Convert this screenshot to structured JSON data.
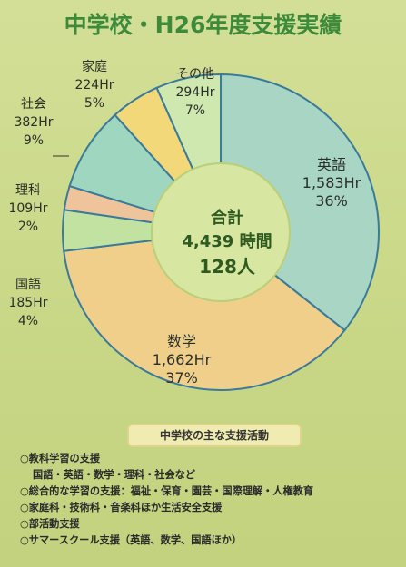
{
  "chart_data": {
    "type": "pie",
    "title": "中学校・H26年度支援実績",
    "center": {
      "line1": "合計",
      "line2": "4,439 時間",
      "line3": "128人"
    },
    "slices": [
      {
        "name": "英語",
        "value_label": "1,583Hr",
        "percent_label": "36%",
        "value": 1583,
        "color": "#a9d6c4"
      },
      {
        "name": "数学",
        "value_label": "1,662Hr",
        "percent_label": "37%",
        "value": 1662,
        "color": "#efcf8a"
      },
      {
        "name": "国語",
        "value_label": "185Hr",
        "percent_label": "4%",
        "value": 185,
        "color": "#c1e2a0"
      },
      {
        "name": "理科",
        "value_label": "109Hr",
        "percent_label": "2%",
        "value": 109,
        "color": "#f0c49a"
      },
      {
        "name": "社会",
        "value_label": "382Hr",
        "percent_label": "9%",
        "value": 382,
        "color": "#9fd6bf"
      },
      {
        "name": "家庭",
        "value_label": "224Hr",
        "percent_label": "5%",
        "value": 224,
        "color": "#f2d878"
      },
      {
        "name": "その他",
        "value_label": "294Hr",
        "percent_label": "7%",
        "value": 294,
        "color": "#cfe8b0"
      }
    ]
  },
  "activities": {
    "heading": "中学校の主な支援活動",
    "items": [
      "○教科学習の支援",
      "国語・英語・数学・理科・社会など",
      "○総合的な学習の支援：福祉・保育・園芸・国際理解・人権教育",
      "○家庭科・技術科・音楽科ほか生活安全支援",
      "○部活動支援",
      "○サマースクール支援（英語、数学、国語ほか）"
    ]
  },
  "colors": {
    "title": "#3c8a3a",
    "outline": "#3a7a9a",
    "center_fill": "#d7e6a0"
  }
}
